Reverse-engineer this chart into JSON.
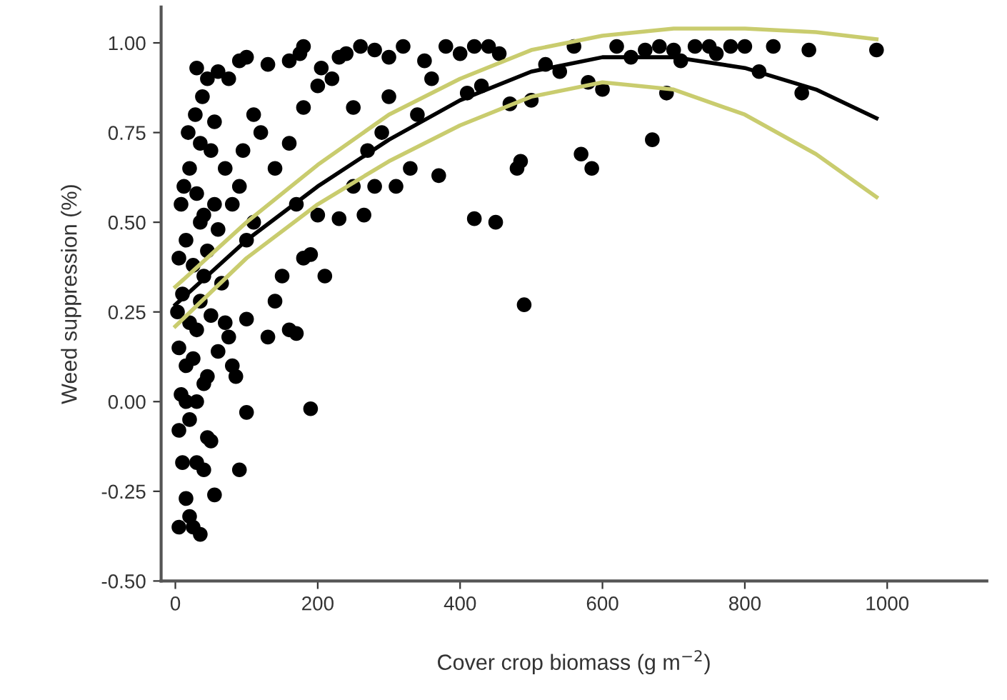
{
  "chart_data": {
    "type": "scatter",
    "xlabel": "Cover crop biomass (g m$^{−2}$)",
    "ylabel": "Weed suppression (%)",
    "xlim": [
      -20,
      1140
    ],
    "ylim": [
      -0.5,
      1.1
    ],
    "xticks": [
      0,
      200,
      400,
      600,
      800,
      1000
    ],
    "yticks": [
      {
        "value": -0.5,
        "label": "-0.50"
      },
      {
        "value": -0.25,
        "label": "-0.25"
      },
      {
        "value": 0,
        "label": "0.00"
      },
      {
        "value": 0.25,
        "label": "0.25"
      },
      {
        "value": 0.5,
        "label": "0.50"
      },
      {
        "value": 0.75,
        "label": "0.75"
      },
      {
        "value": 1.0,
        "label": "1.00"
      }
    ],
    "grid": false,
    "legend": false,
    "series": [
      {
        "color": "#000000",
        "marker": "circle",
        "x": [
          5,
          15,
          25,
          35,
          20,
          10,
          30,
          40,
          5,
          20,
          8,
          30,
          45,
          55,
          50,
          90,
          100,
          190,
          170,
          160,
          15,
          25,
          40,
          45,
          60,
          70,
          75,
          80,
          85,
          5,
          3,
          10,
          20,
          35,
          50,
          65,
          100,
          130,
          140,
          150,
          180,
          210,
          230,
          5,
          15,
          25,
          35,
          45,
          55,
          60,
          8,
          12,
          20,
          30,
          40,
          50,
          18,
          28,
          38,
          30,
          45,
          60,
          35,
          55,
          70,
          80,
          90,
          100,
          110,
          95,
          110,
          75,
          90,
          100,
          130,
          160,
          180,
          175,
          120,
          140,
          160,
          170,
          180,
          200,
          220,
          240,
          250,
          260,
          280,
          300,
          320,
          270,
          290,
          300,
          310,
          280,
          330,
          350,
          370,
          340,
          360,
          380,
          400,
          420,
          410,
          430,
          440,
          455,
          470,
          480,
          485,
          500,
          420,
          450,
          490,
          520,
          540,
          560,
          580,
          570,
          585,
          600,
          620,
          640,
          660,
          680,
          700,
          670,
          690,
          710,
          730,
          750,
          760,
          780,
          800,
          820,
          840,
          880,
          890,
          985,
          205,
          230,
          250,
          265,
          200,
          190,
          30,
          15,
          40
        ],
        "values": [
          -0.35,
          -0.27,
          -0.35,
          -0.37,
          -0.32,
          -0.17,
          -0.17,
          -0.19,
          -0.08,
          -0.05,
          0.02,
          0.0,
          -0.1,
          -0.26,
          -0.11,
          -0.19,
          -0.03,
          -0.02,
          0.19,
          0.2,
          0.1,
          0.12,
          0.05,
          0.07,
          0.14,
          0.22,
          0.18,
          0.1,
          0.07,
          0.15,
          0.25,
          0.3,
          0.22,
          0.28,
          0.24,
          0.33,
          0.23,
          0.18,
          0.28,
          0.35,
          0.4,
          0.35,
          0.51,
          0.4,
          0.45,
          0.38,
          0.5,
          0.42,
          0.55,
          0.48,
          0.55,
          0.6,
          0.65,
          0.58,
          0.52,
          0.7,
          0.75,
          0.8,
          0.85,
          0.93,
          0.9,
          0.92,
          0.72,
          0.78,
          0.65,
          0.55,
          0.6,
          0.45,
          0.5,
          0.7,
          0.8,
          0.9,
          0.95,
          0.96,
          0.94,
          0.95,
          0.99,
          0.97,
          0.75,
          0.65,
          0.72,
          0.55,
          0.82,
          0.88,
          0.9,
          0.97,
          0.82,
          0.99,
          0.98,
          0.96,
          0.99,
          0.7,
          0.75,
          0.85,
          0.6,
          0.6,
          0.65,
          0.95,
          0.63,
          0.8,
          0.9,
          0.99,
          0.97,
          0.99,
          0.86,
          0.88,
          0.99,
          0.97,
          0.83,
          0.65,
          0.67,
          0.84,
          0.51,
          0.5,
          0.27,
          0.94,
          0.92,
          0.99,
          0.89,
          0.69,
          0.65,
          0.87,
          0.99,
          0.96,
          0.98,
          0.99,
          0.98,
          0.73,
          0.86,
          0.95,
          0.99,
          0.99,
          0.97,
          0.99,
          0.99,
          0.92,
          0.99,
          0.86,
          0.98,
          0.98,
          0.93,
          0.96,
          0.6,
          0.52,
          0.52,
          0.41,
          0.2,
          0.0,
          0.35
        ]
      },
      {
        "type": "line",
        "color": "#c9cc6e",
        "marker": "none",
        "line_style": "solid",
        "x": [
          0,
          100,
          200,
          300,
          400,
          500,
          600,
          700,
          800,
          900,
          985
        ],
        "values": [
          0.32,
          0.5,
          0.66,
          0.8,
          0.9,
          0.98,
          1.02,
          1.04,
          1.04,
          1.03,
          1.01
        ]
      },
      {
        "type": "line",
        "color": "#c9cc6e",
        "marker": "none",
        "line_style": "solid",
        "x": [
          0,
          100,
          200,
          300,
          400,
          500,
          600,
          700,
          800,
          900,
          985
        ],
        "values": [
          0.21,
          0.4,
          0.55,
          0.67,
          0.77,
          0.85,
          0.89,
          0.87,
          0.8,
          0.69,
          0.57
        ]
      },
      {
        "type": "line",
        "color": "#000000",
        "marker": "none",
        "line_style": "solid",
        "x": [
          0,
          100,
          200,
          300,
          400,
          500,
          600,
          700,
          800,
          900,
          985
        ],
        "values": [
          0.27,
          0.45,
          0.6,
          0.73,
          0.84,
          0.92,
          0.96,
          0.96,
          0.93,
          0.87,
          0.79
        ]
      }
    ]
  }
}
